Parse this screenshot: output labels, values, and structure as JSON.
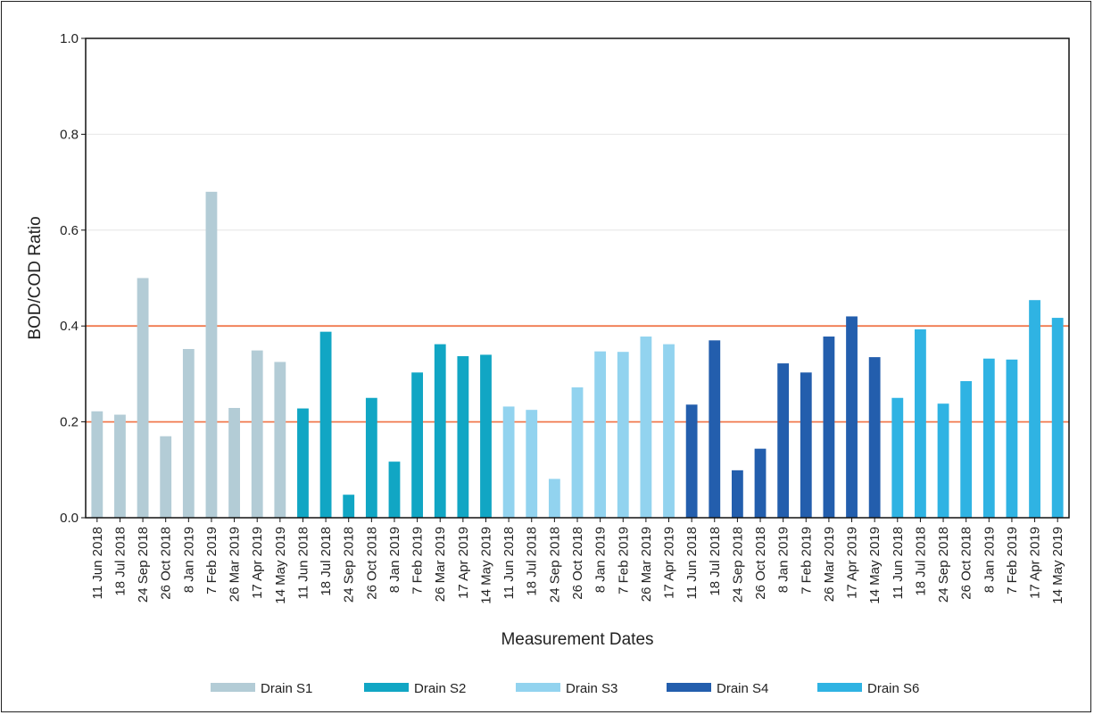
{
  "chart_data": {
    "type": "bar",
    "xlabel": "Measurement Dates",
    "ylabel": "BOD/COD Ratio",
    "ylim": [
      0,
      1.0
    ],
    "yticks": [
      "0.0",
      "0.2",
      "0.4",
      "0.6",
      "0.8",
      "1.0"
    ],
    "grid": true,
    "legend_position": "bottom",
    "reference_lines": [
      {
        "y": 0.2,
        "color": "#f07a4e"
      },
      {
        "y": 0.4,
        "color": "#f07a4e"
      }
    ],
    "series": [
      {
        "name": "Drain S1",
        "color": "#b3ccd6",
        "dates": [
          "11 Jun 2018",
          "18 Jul 2018",
          "24 Sep 2018",
          "26 Oct 2018",
          "8 Jan 2019",
          "7 Feb 2019",
          "26 Mar 2019",
          "17 Apr 2019",
          "14 May 2019"
        ],
        "values": [
          0.222,
          0.215,
          0.5,
          0.17,
          0.352,
          0.68,
          0.229,
          0.349,
          0.325
        ]
      },
      {
        "name": "Drain S2",
        "color": "#11a6c4",
        "dates": [
          "11 Jun 2018",
          "18 Jul 2018",
          "24 Sep 2018",
          "26 Oct 2018",
          "8 Jan 2019",
          "7 Feb 2019",
          "26 Mar 2019",
          "17 Apr 2019",
          "14 May 2019"
        ],
        "values": [
          0.228,
          0.388,
          0.048,
          0.25,
          0.117,
          0.303,
          0.362,
          0.337,
          0.34
        ]
      },
      {
        "name": "Drain S3",
        "color": "#92d3ef",
        "dates": [
          "11 Jun 2018",
          "18 Jul 2018",
          "24 Sep 2018",
          "26 Oct 2018",
          "8 Jan 2019",
          "7 Feb 2019",
          "26 Mar 2019",
          "17 Apr 2019"
        ],
        "values": [
          0.232,
          0.225,
          0.081,
          0.272,
          0.347,
          0.346,
          0.378,
          0.362
        ]
      },
      {
        "name": "Drain S4",
        "color": "#235ead",
        "dates": [
          "11 Jun 2018",
          "18 Jul 2018",
          "24 Sep 2018",
          "26 Oct 2018",
          "8 Jan 2019",
          "7 Feb 2019",
          "26 Mar 2019",
          "17 Apr 2019",
          "14 May 2019"
        ],
        "values": [
          0.236,
          0.37,
          0.099,
          0.144,
          0.322,
          0.303,
          0.378,
          0.42,
          0.335
        ]
      },
      {
        "name": "Drain S6",
        "color": "#2fb3e3",
        "dates": [
          "11 Jun 2018",
          "18 Jul 2018",
          "24 Sep 2018",
          "26 Oct 2018",
          "8 Jan 2019",
          "7 Feb 2019",
          "17 Apr 2019",
          "14 May 2019"
        ],
        "values": [
          0.25,
          0.393,
          0.238,
          0.285,
          0.332,
          0.33,
          0.454,
          0.417
        ]
      }
    ]
  }
}
